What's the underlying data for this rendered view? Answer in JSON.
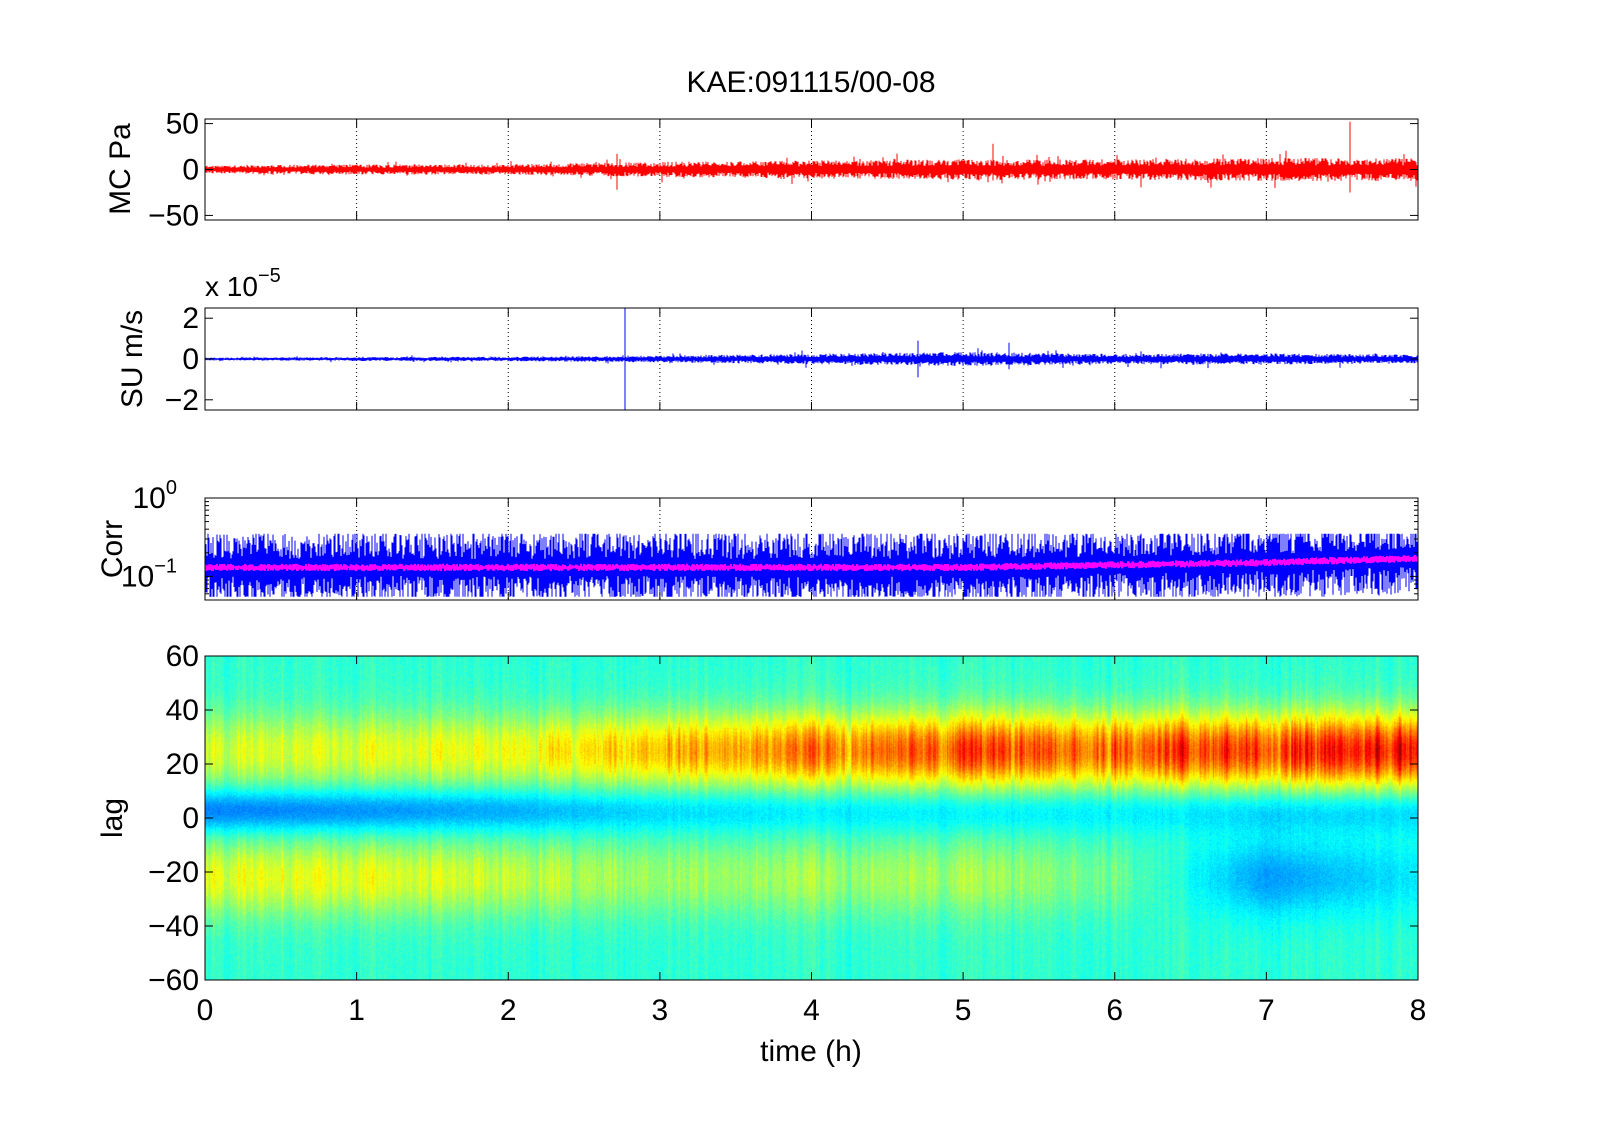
{
  "chart_data": {
    "title": "KAE:091115/00-08",
    "xlabel": "time (h)",
    "xlim": [
      0,
      8
    ],
    "x_ticks": [
      "0",
      "1",
      "2",
      "3",
      "4",
      "5",
      "6",
      "7",
      "8"
    ],
    "panels": [
      {
        "id": "mc",
        "type": "line",
        "ylabel": "MC Pa",
        "ylim": [
          -55,
          55
        ],
        "y_ticks": [
          50,
          0,
          -50
        ],
        "y_tick_labels": [
          "50",
          "0",
          "−50"
        ],
        "grid": "vertical-dotted",
        "series": [
          {
            "color": "#ff0000",
            "baseline": 0,
            "noise_amplitude_by_hour": [
              3,
              4,
              4,
              6,
              7,
              8,
              8,
              9,
              9
            ],
            "spikes": [
              {
                "x": 2.72,
                "min": -22,
                "max": 17
              },
              {
                "x": 5.2,
                "min": -12,
                "max": 28
              },
              {
                "x": 7.55,
                "min": -25,
                "max": 52
              }
            ]
          }
        ]
      },
      {
        "id": "su",
        "type": "line",
        "ylabel": "SU m/s",
        "scale_exponent_label": "x 10",
        "scale_exponent": "−5",
        "ylim": [
          -2.5,
          2.5
        ],
        "y_ticks": [
          2,
          0,
          -2
        ],
        "y_tick_labels": [
          "2",
          "0",
          "−2"
        ],
        "grid": "vertical-dotted",
        "series": [
          {
            "color": "#0000ff",
            "baseline": 0,
            "noise_amplitude_by_hour": [
              0.05,
              0.07,
              0.08,
              0.12,
              0.18,
              0.25,
              0.18,
              0.2,
              0.15
            ],
            "spikes": [
              {
                "x": 2.77,
                "min": -2.5,
                "max": 2.5
              },
              {
                "x": 4.7,
                "min": -0.9,
                "max": 0.9
              },
              {
                "x": 5.3,
                "min": -0.5,
                "max": 0.8
              }
            ]
          }
        ]
      },
      {
        "id": "corr",
        "type": "line",
        "ylabel": "Corr",
        "yscale": "log",
        "ylim": [
          0.05,
          1
        ],
        "y_tick_labels": [
          {
            "base": "10",
            "exp": "0",
            "value": 1
          },
          {
            "base": "10",
            "exp": "−1",
            "value": 0.1
          }
        ],
        "grid": "vertical-dotted",
        "series": [
          {
            "color": "#0000ff",
            "center_by_hour": [
              0.13,
              0.13,
              0.13,
              0.13,
              0.13,
              0.13,
              0.14,
              0.15,
              0.17
            ],
            "spread_range": [
              0.055,
              0.35
            ]
          },
          {
            "color": "#ff00ff",
            "center_by_hour": [
              0.13,
              0.13,
              0.13,
              0.13,
              0.13,
              0.13,
              0.14,
              0.15,
              0.17
            ],
            "spread_range": [
              0.1,
              0.2
            ]
          }
        ]
      },
      {
        "id": "lag",
        "type": "heatmap",
        "ylabel": "lag",
        "ylim": [
          -60,
          60
        ],
        "y_ticks": [
          60,
          40,
          20,
          0,
          -20,
          -40,
          -60
        ],
        "y_tick_labels": [
          "60",
          "40",
          "20",
          "0",
          "−20",
          "−40",
          "−60"
        ],
        "colormap": "jet",
        "bands": [
          {
            "lag_center": 25,
            "level": "high",
            "strength_by_hour": [
              0.6,
              0.62,
              0.65,
              0.75,
              0.8,
              0.85,
              0.85,
              0.9,
              0.95
            ]
          },
          {
            "lag_center": 3,
            "level": "low",
            "strength_by_hour": [
              0.2,
              0.22,
              0.25,
              0.3,
              0.32,
              0.32,
              0.33,
              0.3,
              0.3
            ]
          },
          {
            "lag_center": -22,
            "level": "medium-high",
            "strength_by_hour": [
              0.62,
              0.63,
              0.6,
              0.55,
              0.55,
              0.55,
              0.5,
              0.25,
              0.35
            ]
          }
        ]
      }
    ]
  }
}
